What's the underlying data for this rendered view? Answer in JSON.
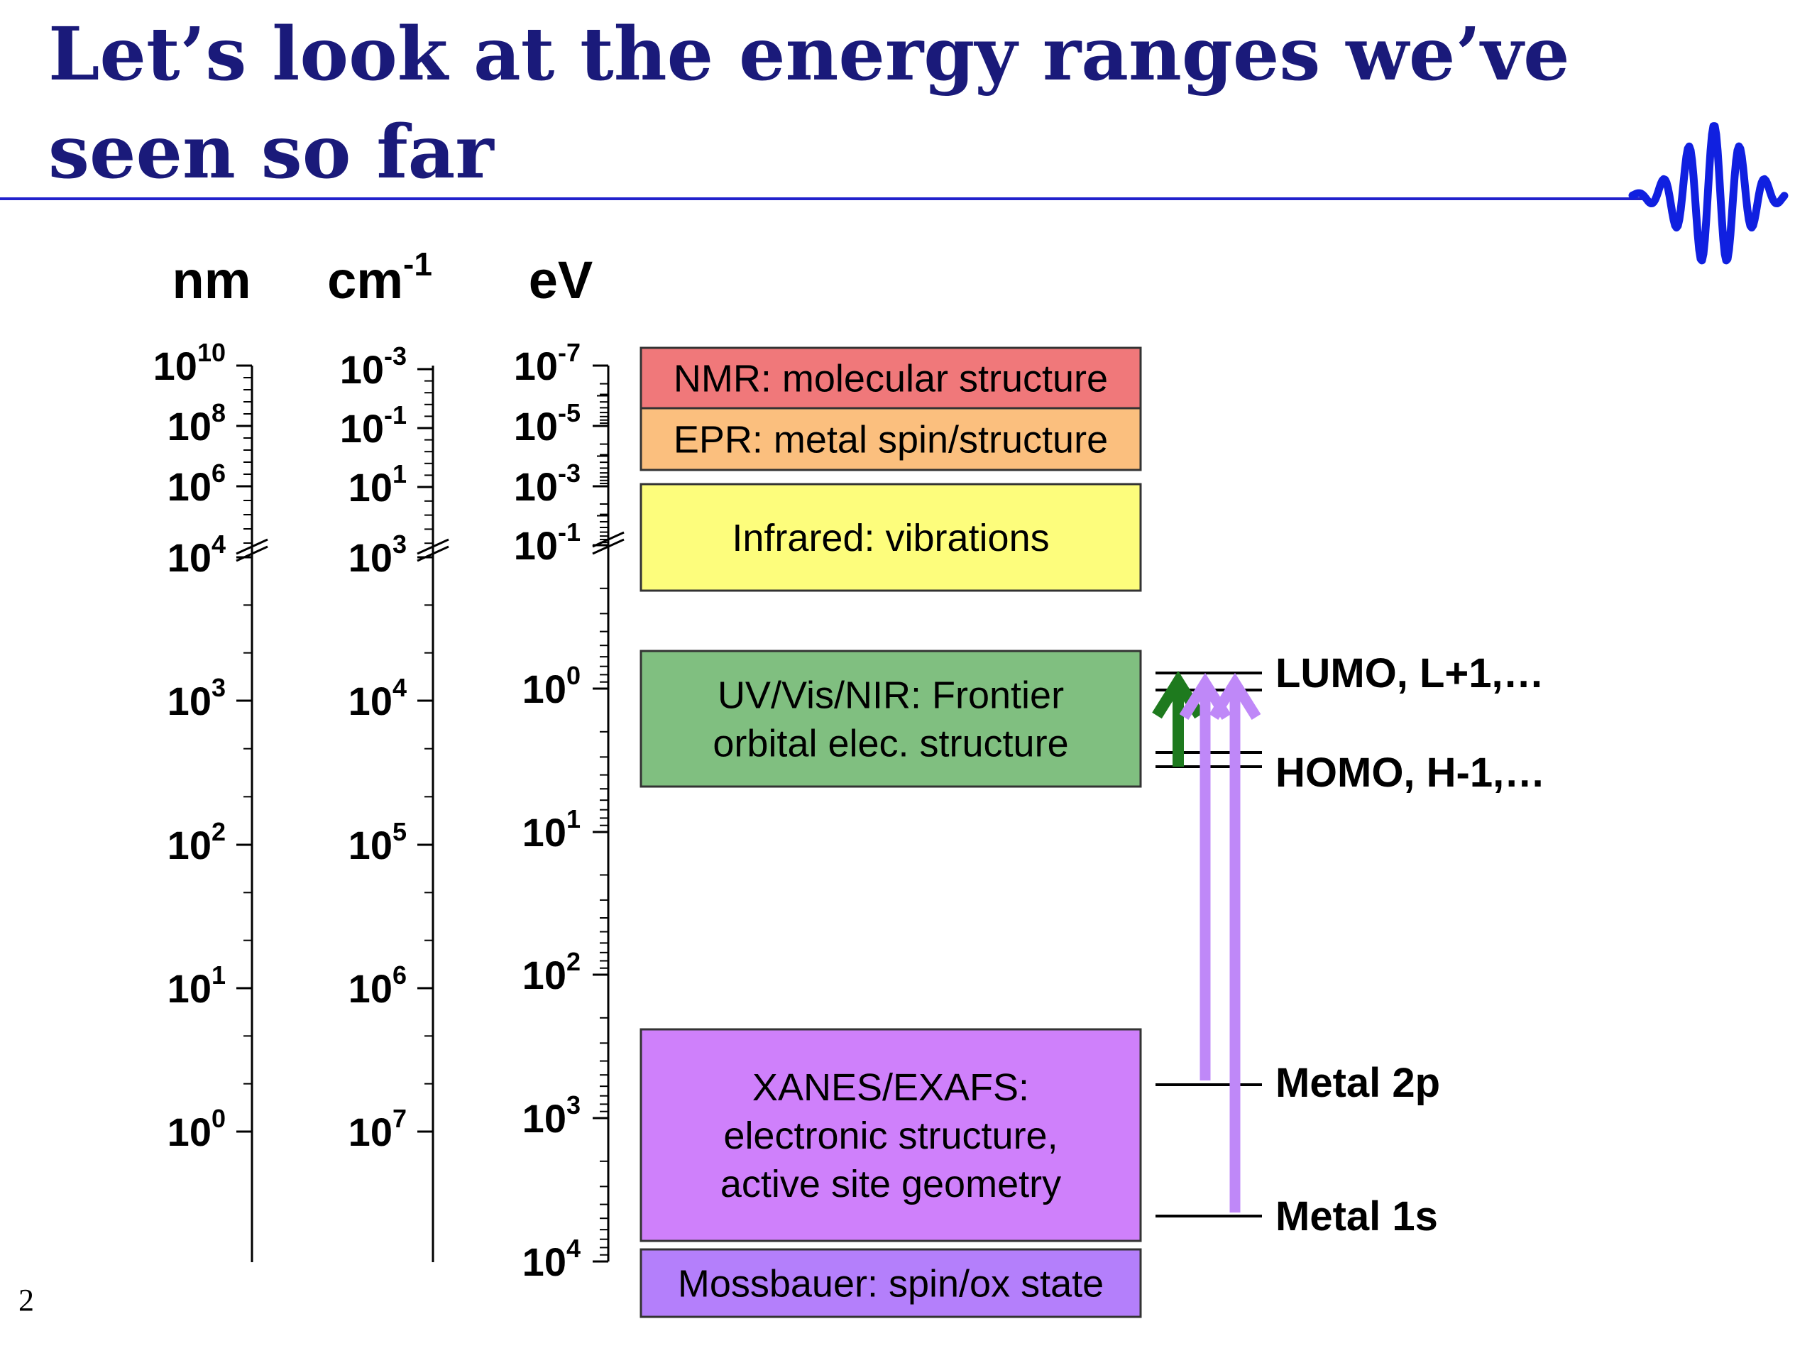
{
  "slide": {
    "title": "Let’s look at the energy ranges we’ve seen so far",
    "number": "2",
    "accent_color": "#1a1a7a",
    "rule_color": "#2222cc",
    "logo_icon": "wave-packet-icon"
  },
  "axes": [
    {
      "id": "nm",
      "unit": {
        "base": "cm",
        "exp": ""
      },
      "ticks": []
    }
  ],
  "bands": [],
  "levels": [],
  "arrows": []
}
